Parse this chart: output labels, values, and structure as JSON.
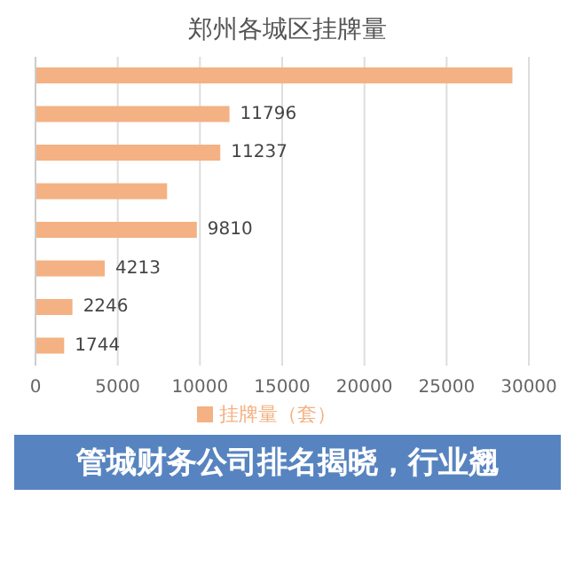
{
  "chart_data": {
    "type": "bar",
    "orientation": "horizontal",
    "title": "郑州各城区挂牌量",
    "categories": [
      null,
      null,
      null,
      null,
      null,
      null,
      null,
      null
    ],
    "series": [
      {
        "name": "挂牌量（套）",
        "color": "#f4b183",
        "values": [
          29000,
          11796,
          11237,
          8000,
          9810,
          4213,
          2246,
          1744
        ],
        "value_labels": [
          null,
          "11796",
          "11237",
          null,
          "9810",
          "4213",
          "2246",
          "1744"
        ]
      }
    ],
    "xlim": [
      0,
      30000
    ],
    "xticks": [
      0,
      5000,
      10000,
      15000,
      20000,
      25000,
      30000
    ],
    "grid": "x",
    "legend": "bottom",
    "annotations": [
      "管城财务公司排名揭晓，行业翘"
    ]
  }
}
